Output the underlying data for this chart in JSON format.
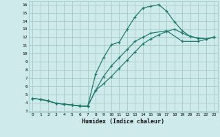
{
  "xlabel": "Humidex (Indice chaleur)",
  "bg_color": "#ceeaea",
  "grid_color": "#aacfcf",
  "line_color": "#217a6e",
  "xlim": [
    -0.5,
    23.5
  ],
  "ylim": [
    2.8,
    16.4
  ],
  "xticks": [
    0,
    1,
    2,
    3,
    4,
    5,
    6,
    7,
    8,
    9,
    10,
    11,
    12,
    13,
    14,
    15,
    16,
    17,
    18,
    19,
    20,
    21,
    22,
    23
  ],
  "yticks": [
    3,
    4,
    5,
    6,
    7,
    8,
    9,
    10,
    11,
    12,
    13,
    14,
    15,
    16
  ],
  "line1_x": [
    0,
    1,
    2,
    3,
    4,
    5,
    6,
    7,
    8,
    9,
    10,
    11,
    12,
    13,
    14,
    15,
    16,
    17,
    18,
    19,
    20,
    21,
    22,
    23
  ],
  "line1_y": [
    4.5,
    4.4,
    4.2,
    3.9,
    3.8,
    3.7,
    3.6,
    3.55,
    7.5,
    9.5,
    11.1,
    11.4,
    13.0,
    14.5,
    15.6,
    15.8,
    16.0,
    15.2,
    13.9,
    12.8,
    12.1,
    11.9,
    11.8,
    12.0
  ],
  "line2_x": [
    0,
    1,
    2,
    3,
    4,
    5,
    6,
    7,
    8,
    9,
    10,
    11,
    12,
    13,
    14,
    15,
    16,
    17,
    18,
    19,
    20,
    21,
    22,
    23
  ],
  "line2_y": [
    4.5,
    4.4,
    4.2,
    3.9,
    3.8,
    3.7,
    3.6,
    3.55,
    5.5,
    6.3,
    7.2,
    8.2,
    9.2,
    10.2,
    11.2,
    11.8,
    12.3,
    12.7,
    13.0,
    12.5,
    12.1,
    11.9,
    11.8,
    12.0
  ],
  "line3_x": [
    0,
    1,
    2,
    3,
    4,
    5,
    6,
    7,
    8,
    9,
    10,
    11,
    12,
    13,
    14,
    15,
    17,
    19,
    21,
    23
  ],
  "line3_y": [
    4.5,
    4.4,
    4.2,
    3.9,
    3.8,
    3.7,
    3.55,
    3.55,
    5.5,
    7.2,
    8.5,
    9.5,
    10.5,
    11.5,
    12.0,
    12.5,
    12.8,
    11.5,
    11.5,
    12.0
  ]
}
